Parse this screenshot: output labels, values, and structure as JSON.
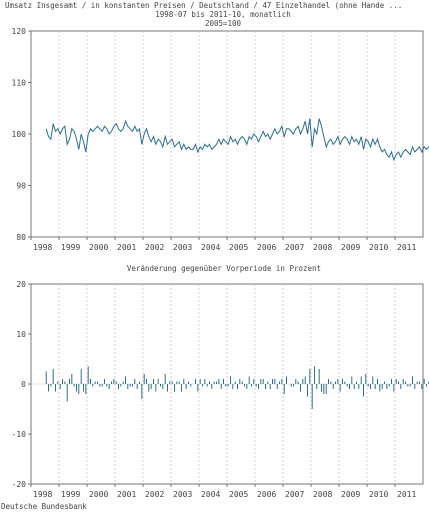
{
  "chart_data": [
    {
      "type": "line",
      "title": "Umsatz Insgesamt / in konstanten Preisen / Deutschland / 47 Einzelhandel (ohne Hande ...",
      "subtitle": "1998-07 bis 2011-10, monatlich",
      "subtitle2": "2005=100",
      "xlabel": "",
      "ylabel": "",
      "ylim": [
        80,
        120
      ],
      "yticks": [
        80,
        90,
        100,
        110,
        120
      ],
      "xticks": [
        "1998",
        "1999",
        "2000",
        "2001",
        "2002",
        "2003",
        "2004",
        "2005",
        "2006",
        "2007",
        "2008",
        "2009",
        "2010",
        "2011"
      ],
      "grid": "vertical dashed at year starts",
      "color": "#2a6f8f",
      "x_start": "1998-07",
      "series": [
        {
          "name": "",
          "values": [
            101,
            99.5,
            99,
            102,
            100.5,
            101,
            100,
            101,
            101.5,
            98,
            99,
            101,
            100.5,
            99,
            97,
            100,
            98.5,
            96.5,
            100,
            101,
            100.5,
            101,
            101.5,
            101,
            100.5,
            101.5,
            101,
            100,
            100.5,
            101.5,
            102,
            101,
            100.5,
            101,
            102.5,
            101.5,
            101,
            100.5,
            101.5,
            100.5,
            101,
            98,
            100,
            101,
            99.5,
            98.5,
            99.5,
            98,
            99,
            98.5,
            97.5,
            99.5,
            98,
            98.5,
            99,
            97.5,
            98,
            98.5,
            97,
            98,
            97,
            97.5,
            97,
            97,
            98,
            96.5,
            97.5,
            97,
            98,
            97.5,
            98,
            97,
            97.5,
            98,
            99,
            98,
            99,
            98.5,
            98,
            99.5,
            98.5,
            99,
            98,
            99,
            99.5,
            99,
            98,
            99.5,
            99,
            100,
            99.5,
            98.5,
            99.5,
            100.5,
            99.5,
            100,
            99,
            100,
            101,
            100,
            100.5,
            101.5,
            99.5,
            101,
            101,
            100.5,
            100,
            101,
            101.5,
            100,
            101,
            102.5,
            100,
            103,
            97.5,
            101,
            100,
            103,
            101.5,
            99.5,
            97.5,
            98.5,
            99,
            98,
            98.5,
            99.5,
            98,
            99,
            99.5,
            99,
            98,
            99.5,
            98.5,
            99,
            98,
            99.5,
            97,
            99,
            98.5,
            97.5,
            99,
            98,
            99,
            97.5,
            96.5,
            97,
            96,
            95.5,
            96.5,
            95,
            96,
            96.5,
            95.5,
            96.5,
            97,
            96.5,
            96,
            97.5,
            96.5,
            97,
            97.5,
            96.5,
            97.5,
            97,
            97.5,
            97,
            97.5,
            98,
            97.5,
            98,
            97.5,
            98.5,
            97.5,
            98,
            97,
            98.5,
            98,
            98,
            99,
            98.5,
            97.5,
            99,
            99,
            98.5,
            99.5,
            98.5,
            98,
            98.5,
            98.5,
            99,
            98.5,
            99
          ]
        }
      ]
    },
    {
      "type": "bar",
      "title": "Veränderung gegenüber Vorperiode in Prozent",
      "xlabel": "",
      "ylabel": "",
      "ylim": [
        -20,
        20
      ],
      "yticks": [
        -20,
        -10,
        0,
        10,
        20
      ],
      "xticks": [
        "1998",
        "1999",
        "2000",
        "2001",
        "2002",
        "2003",
        "2004",
        "2005",
        "2006",
        "2007",
        "2008",
        "2009",
        "2010",
        "2011"
      ],
      "grid": "vertical dashed at year starts",
      "color": "#2a6f8f",
      "x_start": "1998-07",
      "values": [
        2.5,
        -1.5,
        -0.5,
        3.0,
        -1.5,
        0.5,
        -1.0,
        1.0,
        0.5,
        -3.5,
        1.0,
        2.0,
        -0.5,
        -1.5,
        -2.0,
        3.0,
        -1.5,
        -2.0,
        3.5,
        1.0,
        -0.5,
        0.5,
        0.5,
        -0.5,
        -0.5,
        1.0,
        -0.5,
        -1.0,
        0.5,
        1.0,
        0.5,
        -1.0,
        -0.5,
        0.5,
        1.5,
        -1.0,
        -0.5,
        -0.5,
        1.0,
        -1.0,
        0.5,
        -3.0,
        2.0,
        1.0,
        -1.5,
        -1.0,
        1.0,
        -1.5,
        1.0,
        -0.5,
        -1.0,
        2.0,
        -1.5,
        0.5,
        0.5,
        -1.5,
        0.5,
        0.5,
        -1.5,
        1.0,
        -1.0,
        0.5,
        -0.5,
        0.0,
        1.0,
        -1.5,
        1.0,
        -0.5,
        1.0,
        -0.5,
        0.5,
        -1.0,
        0.5,
        0.5,
        1.0,
        -1.0,
        1.0,
        -0.5,
        -0.5,
        1.5,
        -1.0,
        0.5,
        -1.0,
        1.0,
        0.5,
        -0.5,
        -1.0,
        1.5,
        -0.5,
        1.0,
        -0.5,
        -1.0,
        1.0,
        1.0,
        -1.0,
        0.5,
        -1.0,
        1.0,
        1.0,
        -1.0,
        0.5,
        1.0,
        -2.0,
        1.5,
        0.0,
        -0.5,
        -0.5,
        1.0,
        0.5,
        -1.5,
        1.0,
        1.5,
        -2.5,
        3.0,
        -5.0,
        3.5,
        -1.0,
        3.0,
        -1.5,
        -2.0,
        -2.0,
        1.0,
        0.5,
        -1.0,
        0.5,
        1.0,
        -1.5,
        1.0,
        0.5,
        -0.5,
        -1.0,
        1.5,
        -1.0,
        0.5,
        -1.0,
        1.5,
        -2.5,
        2.0,
        -0.5,
        -1.0,
        1.5,
        -1.0,
        1.0,
        -1.5,
        -1.0,
        0.5,
        -1.0,
        -0.5,
        1.0,
        -1.5,
        1.0,
        0.5,
        -1.0,
        1.0,
        0.5,
        -0.5,
        -0.5,
        1.5,
        -1.0,
        0.5,
        0.5,
        -1.0,
        1.0,
        -0.5,
        0.5,
        -0.5,
        0.5,
        0.5,
        -0.5,
        0.5,
        -0.5,
        1.0,
        -1.0,
        0.5,
        -1.0,
        1.5,
        -0.5,
        0.0,
        1.0,
        -0.5,
        -1.0,
        1.5,
        0.0,
        -0.5,
        1.0,
        -1.0,
        -0.5,
        0.5,
        0.0,
        0.5,
        -0.5,
        0.5
      ]
    }
  ],
  "source": "Deutsche Bundesbank"
}
